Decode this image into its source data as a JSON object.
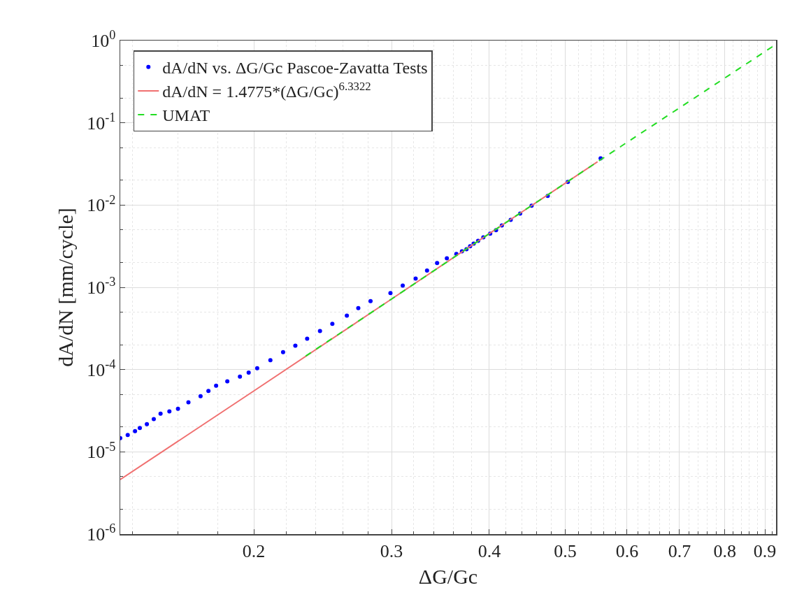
{
  "chart_data": {
    "type": "line",
    "xlabel": "ΔG/Gc",
    "ylabel": "dA/dN [mm/cycle]",
    "log": "xy",
    "grid": true,
    "legend": "top left",
    "xlim": [
      0.135,
      0.93
    ],
    "xticks": [
      0.2,
      0.3,
      0.4,
      0.5,
      0.6,
      0.7,
      0.8,
      0.9
    ],
    "ylim": [
      1e-06,
      1
    ],
    "yticks": [
      {
        "value": 1e-06,
        "label": "10$^{-6}$"
      },
      {
        "value": 1e-05,
        "label": "10$^{-5}$"
      },
      {
        "value": 0.0001,
        "label": "10$^{-4}$"
      },
      {
        "value": 0.001,
        "label": "10$^{-3}$"
      },
      {
        "value": 0.01,
        "label": "10$^{-2}$"
      },
      {
        "value": 0.1,
        "label": "10$^{-1}$"
      },
      {
        "value": 1,
        "label": "10$^{0}$"
      }
    ],
    "series": [
      {
        "name": "dA/dN vs. ΔG/Gc Pascoe-Zavatta Tests",
        "type": "scatter",
        "marker": "circle",
        "color": "#0000ff",
        "x": [
          0.135,
          0.138,
          0.141,
          0.143,
          0.146,
          0.149,
          0.152,
          0.156,
          0.16,
          0.165,
          0.171,
          0.175,
          0.179,
          0.185,
          0.192,
          0.197,
          0.202,
          0.21,
          0.218,
          0.226,
          0.234,
          0.243,
          0.252,
          0.263,
          0.272,
          0.282,
          0.299,
          0.31,
          0.322,
          0.333,
          0.343,
          0.353,
          0.363,
          0.369,
          0.374,
          0.378,
          0.382,
          0.387,
          0.393,
          0.401,
          0.408,
          0.415,
          0.426,
          0.438,
          0.453,
          0.475,
          0.504,
          0.555
        ],
        "values": [
          1.47e-05,
          1.6e-05,
          1.78e-05,
          1.95e-05,
          2.17e-05,
          2.5e-05,
          2.91e-05,
          3.1e-05,
          3.33e-05,
          4e-05,
          4.75e-05,
          5.5e-05,
          6.37e-05,
          7.2e-05,
          8.2e-05,
          9.2e-05,
          0.000104,
          0.00013,
          0.000163,
          0.000195,
          0.000237,
          0.000295,
          0.00036,
          0.000452,
          0.00056,
          0.00068,
          0.00085,
          0.00105,
          0.00128,
          0.0016,
          0.00197,
          0.00225,
          0.00254,
          0.00274,
          0.00291,
          0.00315,
          0.0034,
          0.00368,
          0.00406,
          0.00448,
          0.00494,
          0.00566,
          0.0066,
          0.0079,
          0.0098,
          0.0129,
          0.0191,
          0.037
        ]
      },
      {
        "name": "dA/dN = 1.4775*(ΔG/Gc)$^{6.3322}$",
        "line_style": "solid",
        "color": "#f07070",
        "x": [
          0.135,
          0.2,
          0.3,
          0.4,
          0.55
        ],
        "values": [
          4.6e-06,
          5.5e-05,
          0.00072,
          0.0045,
          0.0336
        ]
      },
      {
        "name": "UMAT",
        "line_style": "dashed",
        "color": "#22dd22",
        "x": [
          0.233,
          0.3,
          0.4,
          0.55,
          0.93
        ],
        "values": [
          0.000146,
          0.00072,
          0.0045,
          0.0336,
          0.9
        ]
      }
    ]
  }
}
